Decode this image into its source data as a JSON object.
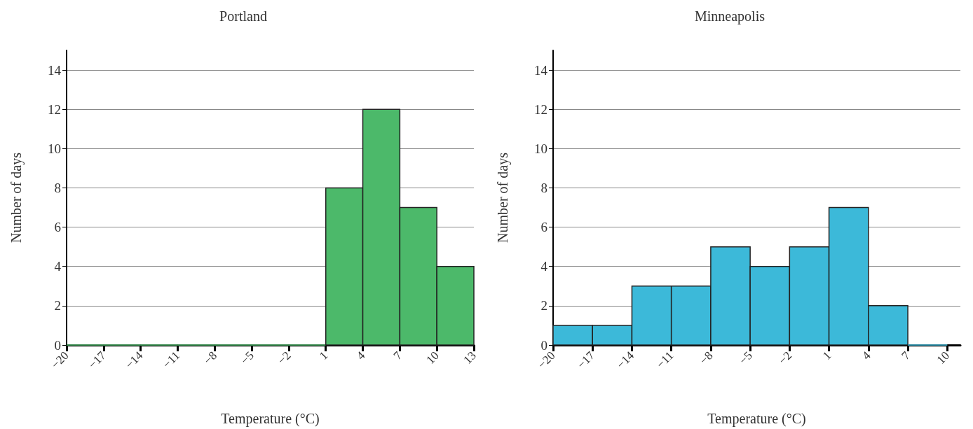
{
  "chart_data": [
    {
      "type": "histogram",
      "title": "Portland",
      "xlabel": "Temperature (°C)",
      "ylabel": "Number of days",
      "bins": [
        -20,
        -17,
        -14,
        -11,
        -8,
        -5,
        -2,
        1,
        4,
        7,
        10,
        13
      ],
      "values": [
        0,
        0,
        0,
        0,
        0,
        0,
        0,
        8,
        12,
        7,
        4
      ],
      "color": "#4cb96a",
      "xlim": [
        -20,
        13
      ],
      "xticks": [
        {
          "value": -20,
          "label": "−20"
        },
        {
          "value": -17,
          "label": "−17"
        },
        {
          "value": -14,
          "label": "−14"
        },
        {
          "value": -11,
          "label": "−11"
        },
        {
          "value": -8,
          "label": "−8"
        },
        {
          "value": -5,
          "label": "−5"
        },
        {
          "value": -2,
          "label": "−2"
        },
        1,
        4,
        7,
        10,
        13
      ],
      "ylim": [
        0,
        15
      ],
      "yticks": [
        0,
        2,
        4,
        6,
        8,
        10,
        12,
        14
      ],
      "grid": "y"
    },
    {
      "type": "histogram",
      "title": "Minneapolis",
      "xlabel": "Temperature (°C)",
      "ylabel": "Number of days",
      "bins": [
        -20,
        -17,
        -14,
        -11,
        -8,
        -5,
        -2,
        1,
        4,
        7,
        10
      ],
      "values": [
        1,
        1,
        3,
        3,
        5,
        4,
        5,
        7,
        2,
        0
      ],
      "color": "#3cb9d9",
      "xlim": [
        -20,
        11
      ],
      "xticks": [
        {
          "value": -20,
          "label": "−20"
        },
        {
          "value": -17,
          "label": "−17"
        },
        {
          "value": -14,
          "label": "−14"
        },
        {
          "value": -11,
          "label": "−11"
        },
        {
          "value": -8,
          "label": "−8"
        },
        {
          "value": -5,
          "label": "−5"
        },
        {
          "value": -2,
          "label": "−2"
        },
        1,
        4,
        7,
        10
      ],
      "ylim": [
        0,
        15
      ],
      "yticks": [
        0,
        2,
        4,
        6,
        8,
        10,
        12,
        14
      ],
      "grid": "y"
    }
  ]
}
